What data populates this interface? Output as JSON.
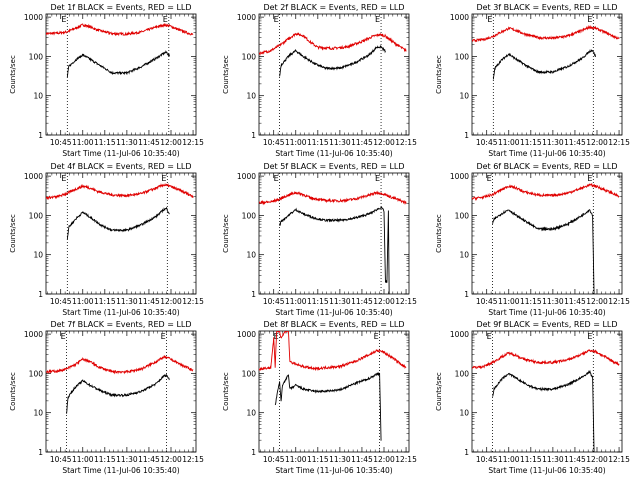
{
  "chart_data": {
    "type": "line",
    "shared": {
      "title_suffix": "BLACK = Events, RED = LLD",
      "xlabel": "Start Time (11-Jul-06 10:35:40)",
      "ylabel": "Counts/sec",
      "x_ticks": [
        "10:45",
        "11:00",
        "11:15",
        "11:30",
        "11:45",
        "12:00",
        "12:15"
      ],
      "x_tick_minutes": [
        10,
        25,
        40,
        55,
        70,
        85,
        100
      ],
      "x_range_minutes": [
        0,
        102
      ],
      "y_ticks": [
        "1",
        "10",
        "100",
        "1000"
      ],
      "y_tick_values": [
        1,
        10,
        100,
        1000
      ],
      "y_range": [
        1,
        1200
      ],
      "y_scale": "log",
      "marker_label": "E",
      "series_names": [
        "Events",
        "LLD"
      ],
      "series_colors": {
        "events": "#000000",
        "lld": "#e00000"
      }
    },
    "panels": [
      {
        "title": "Det 1f",
        "markers_min": [
          14.5,
          83.5
        ],
        "lld": [
          [
            0,
            380
          ],
          [
            8,
            390
          ],
          [
            14,
            420
          ],
          [
            20,
            520
          ],
          [
            25,
            640
          ],
          [
            29,
            580
          ],
          [
            35,
            470
          ],
          [
            45,
            380
          ],
          [
            55,
            370
          ],
          [
            65,
            420
          ],
          [
            75,
            560
          ],
          [
            80,
            630
          ],
          [
            84,
            600
          ],
          [
            90,
            480
          ],
          [
            96,
            400
          ],
          [
            100,
            360
          ]
        ],
        "events": [
          [
            14.5,
            30
          ],
          [
            15.5,
            55
          ],
          [
            20,
            80
          ],
          [
            25,
            110
          ],
          [
            30,
            85
          ],
          [
            38,
            55
          ],
          [
            45,
            38
          ],
          [
            55,
            38
          ],
          [
            65,
            55
          ],
          [
            75,
            90
          ],
          [
            80,
            120
          ],
          [
            82,
            128
          ],
          [
            84,
            100
          ]
        ]
      },
      {
        "title": "Det 2f",
        "markers_min": [
          14,
          83
        ],
        "lld": [
          [
            0,
            120
          ],
          [
            8,
            140
          ],
          [
            14,
            190
          ],
          [
            20,
            280
          ],
          [
            25,
            380
          ],
          [
            30,
            340
          ],
          [
            35,
            230
          ],
          [
            40,
            170
          ],
          [
            50,
            160
          ],
          [
            60,
            175
          ],
          [
            70,
            240
          ],
          [
            78,
            330
          ],
          [
            82,
            360
          ],
          [
            86,
            330
          ],
          [
            92,
            220
          ],
          [
            100,
            140
          ]
        ],
        "events": [
          [
            14,
            30
          ],
          [
            15,
            60
          ],
          [
            20,
            100
          ],
          [
            25,
            140
          ],
          [
            30,
            100
          ],
          [
            38,
            65
          ],
          [
            45,
            50
          ],
          [
            55,
            50
          ],
          [
            65,
            68
          ],
          [
            75,
            110
          ],
          [
            80,
            170
          ],
          [
            83,
            175
          ],
          [
            86,
            135
          ]
        ]
      },
      {
        "title": "Det 3f",
        "markers_min": [
          14.5,
          82.5
        ],
        "lld": [
          [
            0,
            250
          ],
          [
            8,
            270
          ],
          [
            14,
            320
          ],
          [
            20,
            420
          ],
          [
            25,
            520
          ],
          [
            30,
            460
          ],
          [
            35,
            380
          ],
          [
            45,
            300
          ],
          [
            55,
            290
          ],
          [
            65,
            330
          ],
          [
            75,
            460
          ],
          [
            80,
            560
          ],
          [
            84,
            520
          ],
          [
            90,
            420
          ],
          [
            96,
            330
          ],
          [
            100,
            280
          ]
        ],
        "events": [
          [
            14.5,
            25
          ],
          [
            15.5,
            50
          ],
          [
            20,
            80
          ],
          [
            25,
            115
          ],
          [
            30,
            85
          ],
          [
            38,
            55
          ],
          [
            45,
            40
          ],
          [
            55,
            40
          ],
          [
            65,
            55
          ],
          [
            75,
            90
          ],
          [
            80,
            135
          ],
          [
            82,
            145
          ],
          [
            84,
            100
          ]
        ]
      },
      {
        "title": "Det 4f",
        "markers_min": [
          14.5,
          82.5
        ],
        "lld": [
          [
            0,
            280
          ],
          [
            8,
            300
          ],
          [
            14,
            360
          ],
          [
            20,
            460
          ],
          [
            25,
            560
          ],
          [
            30,
            500
          ],
          [
            35,
            410
          ],
          [
            45,
            330
          ],
          [
            55,
            320
          ],
          [
            65,
            360
          ],
          [
            75,
            500
          ],
          [
            80,
            600
          ],
          [
            84,
            560
          ],
          [
            90,
            450
          ],
          [
            96,
            360
          ],
          [
            100,
            300
          ]
        ],
        "events": [
          [
            14.5,
            25
          ],
          [
            15.5,
            50
          ],
          [
            20,
            80
          ],
          [
            25,
            120
          ],
          [
            30,
            90
          ],
          [
            38,
            55
          ],
          [
            45,
            42
          ],
          [
            55,
            42
          ],
          [
            65,
            58
          ],
          [
            75,
            95
          ],
          [
            80,
            140
          ],
          [
            82,
            150
          ],
          [
            84,
            110
          ]
        ]
      },
      {
        "title": "Det 5f",
        "markers_min": [
          14,
          83
        ],
        "lld": [
          [
            0,
            210
          ],
          [
            8,
            220
          ],
          [
            14,
            260
          ],
          [
            20,
            330
          ],
          [
            25,
            380
          ],
          [
            30,
            340
          ],
          [
            35,
            280
          ],
          [
            45,
            240
          ],
          [
            55,
            235
          ],
          [
            65,
            260
          ],
          [
            75,
            330
          ],
          [
            80,
            380
          ],
          [
            84,
            360
          ],
          [
            90,
            290
          ],
          [
            96,
            240
          ],
          [
            100,
            210
          ]
        ],
        "events": [
          [
            14,
            55
          ],
          [
            15,
            70
          ],
          [
            20,
            100
          ],
          [
            25,
            140
          ],
          [
            30,
            110
          ],
          [
            38,
            85
          ],
          [
            45,
            75
          ],
          [
            55,
            75
          ],
          [
            65,
            85
          ],
          [
            75,
            110
          ],
          [
            80,
            140
          ],
          [
            83,
            160
          ],
          [
            85,
            130
          ],
          [
            86,
            2
          ],
          [
            87,
            2
          ],
          [
            88,
            130
          ],
          [
            88.5,
            1
          ]
        ]
      },
      {
        "title": "Det 6f",
        "markers_min": [
          14,
          82.5
        ],
        "lld": [
          [
            0,
            270
          ],
          [
            8,
            290
          ],
          [
            14,
            340
          ],
          [
            20,
            450
          ],
          [
            25,
            560
          ],
          [
            30,
            500
          ],
          [
            35,
            400
          ],
          [
            45,
            330
          ],
          [
            55,
            320
          ],
          [
            65,
            370
          ],
          [
            75,
            500
          ],
          [
            80,
            600
          ],
          [
            84,
            560
          ],
          [
            90,
            450
          ],
          [
            96,
            360
          ],
          [
            100,
            300
          ]
        ],
        "events": [
          [
            14,
            60
          ],
          [
            15,
            80
          ],
          [
            20,
            110
          ],
          [
            25,
            140
          ],
          [
            30,
            100
          ],
          [
            38,
            65
          ],
          [
            45,
            45
          ],
          [
            55,
            45
          ],
          [
            65,
            60
          ],
          [
            75,
            100
          ],
          [
            80,
            140
          ],
          [
            82,
            100
          ],
          [
            83,
            1
          ]
        ]
      },
      {
        "title": "Det 7f",
        "markers_min": [
          14,
          82
        ],
        "lld": [
          [
            0,
            110
          ],
          [
            8,
            115
          ],
          [
            14,
            130
          ],
          [
            20,
            170
          ],
          [
            25,
            230
          ],
          [
            30,
            200
          ],
          [
            35,
            150
          ],
          [
            45,
            110
          ],
          [
            55,
            110
          ],
          [
            65,
            130
          ],
          [
            75,
            200
          ],
          [
            80,
            260
          ],
          [
            84,
            240
          ],
          [
            90,
            180
          ],
          [
            96,
            140
          ],
          [
            100,
            120
          ]
        ],
        "events": [
          [
            14,
            10
          ],
          [
            15,
            25
          ],
          [
            20,
            45
          ],
          [
            25,
            65
          ],
          [
            30,
            50
          ],
          [
            38,
            35
          ],
          [
            45,
            28
          ],
          [
            55,
            28
          ],
          [
            65,
            35
          ],
          [
            75,
            55
          ],
          [
            80,
            85
          ],
          [
            82,
            90
          ],
          [
            84,
            70
          ]
        ]
      },
      {
        "title": "Det 8f",
        "markers_min": [
          14,
          82
        ],
        "lld": [
          [
            0,
            130
          ],
          [
            8,
            140
          ],
          [
            10,
            800
          ],
          [
            11,
            140
          ],
          [
            12,
            1200
          ],
          [
            14,
            1200
          ],
          [
            15,
            800
          ],
          [
            18,
            1200
          ],
          [
            20,
            1200
          ],
          [
            21,
            200
          ],
          [
            25,
            170
          ],
          [
            30,
            150
          ],
          [
            38,
            130
          ],
          [
            45,
            140
          ],
          [
            55,
            150
          ],
          [
            65,
            200
          ],
          [
            75,
            300
          ],
          [
            80,
            380
          ],
          [
            84,
            360
          ],
          [
            90,
            260
          ],
          [
            96,
            180
          ],
          [
            100,
            140
          ]
        ],
        "events": [
          [
            11,
            15
          ],
          [
            12,
            25
          ],
          [
            13,
            40
          ],
          [
            14,
            60
          ],
          [
            15,
            20
          ],
          [
            16,
            50
          ],
          [
            18,
            70
          ],
          [
            20,
            90
          ],
          [
            21,
            40
          ],
          [
            25,
            50
          ],
          [
            30,
            40
          ],
          [
            38,
            35
          ],
          [
            45,
            35
          ],
          [
            55,
            38
          ],
          [
            65,
            55
          ],
          [
            75,
            75
          ],
          [
            80,
            95
          ],
          [
            82,
            100
          ],
          [
            83,
            2
          ]
        ]
      },
      {
        "title": "Det 9f",
        "markers_min": [
          14,
          82.5
        ],
        "lld": [
          [
            0,
            140
          ],
          [
            8,
            150
          ],
          [
            14,
            190
          ],
          [
            20,
            260
          ],
          [
            25,
            330
          ],
          [
            30,
            290
          ],
          [
            35,
            230
          ],
          [
            45,
            190
          ],
          [
            55,
            190
          ],
          [
            65,
            220
          ],
          [
            75,
            310
          ],
          [
            80,
            390
          ],
          [
            84,
            360
          ],
          [
            90,
            270
          ],
          [
            96,
            200
          ],
          [
            100,
            170
          ]
        ],
        "events": [
          [
            14,
            25
          ],
          [
            15,
            40
          ],
          [
            20,
            70
          ],
          [
            25,
            100
          ],
          [
            30,
            75
          ],
          [
            38,
            50
          ],
          [
            45,
            40
          ],
          [
            55,
            40
          ],
          [
            65,
            52
          ],
          [
            75,
            80
          ],
          [
            80,
            110
          ],
          [
            82,
            80
          ],
          [
            83,
            1
          ]
        ]
      }
    ]
  }
}
